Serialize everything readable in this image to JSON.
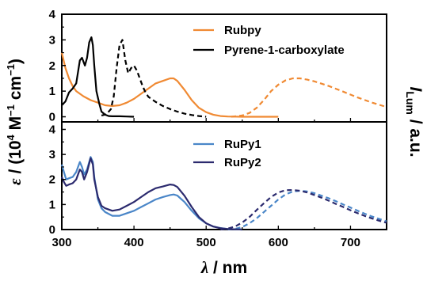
{
  "chart_data": {
    "type": "line",
    "xlabel": "λ / nm",
    "ylabel": "ε / (10⁴ M⁻¹ cm⁻¹)",
    "ylabel_right": "I_Lum / a.u.",
    "axis_text": {
      "eps": "ε",
      "ylabel_rest": " / (10",
      "sup4": "4",
      "m": " M",
      "minus1": "−1",
      "cm": " cm",
      "close": ")",
      "lambda": "λ",
      "xlabel_rest": " / nm",
      "I": "I",
      "lum": "Lum",
      "ilum_rest": " / a.u."
    },
    "xlim": [
      300,
      750
    ],
    "xticks": [
      "300",
      "400",
      "500",
      "600",
      "700"
    ],
    "panels": [
      {
        "ylim": [
          -0.2,
          4
        ],
        "yticks": [
          "0",
          "1",
          "2",
          "3",
          "4"
        ],
        "legend_position": "top-right",
        "series": [
          {
            "name": "Rubpy",
            "color": "#F08A33",
            "style": "solid",
            "x": [
              300,
              305,
              310,
              315,
              320,
              330,
              340,
              350,
              360,
              370,
              380,
              390,
              400,
              410,
              420,
              430,
              440,
              450,
              455,
              460,
              470,
              480,
              490,
              500,
              510,
              520,
              530,
              550,
              575,
              600
            ],
            "y": [
              2.5,
              1.9,
              1.5,
              1.2,
              1.0,
              0.8,
              0.65,
              0.55,
              0.45,
              0.42,
              0.45,
              0.55,
              0.7,
              0.9,
              1.1,
              1.3,
              1.4,
              1.5,
              1.5,
              1.4,
              1.05,
              0.65,
              0.35,
              0.18,
              0.08,
              0.03,
              0.01,
              0.0,
              0.0,
              0.0
            ]
          },
          {
            "name": "Rubpy",
            "color": "#F08A33",
            "style": "dashed",
            "x": [
              535,
              550,
              560,
              570,
              580,
              590,
              600,
              610,
              620,
              630,
              640,
              650,
              670,
              690,
              710,
              730,
              750
            ],
            "y": [
              0.0,
              0.05,
              0.15,
              0.35,
              0.65,
              1.0,
              1.25,
              1.42,
              1.5,
              1.5,
              1.45,
              1.38,
              1.2,
              0.98,
              0.75,
              0.55,
              0.38
            ]
          },
          {
            "name": "Pyrene-1-carboxylate",
            "color": "#000000",
            "style": "solid",
            "x": [
              300,
              305,
              310,
              315,
              320,
              325,
              328,
              332,
              335,
              338,
              341,
              343,
              345,
              348,
              352,
              355,
              360,
              365,
              370,
              380,
              390,
              400
            ],
            "y": [
              0.45,
              0.6,
              0.95,
              1.1,
              1.3,
              2.2,
              2.3,
              2.0,
              2.3,
              2.9,
              3.1,
              2.8,
              2.0,
              1.0,
              0.5,
              0.2,
              0.08,
              0.03,
              0.02,
              0.02,
              0.01,
              0.0
            ]
          },
          {
            "name": "Pyrene-1-carboxylate",
            "color": "#000000",
            "style": "dashed",
            "x": [
              355,
              362,
              368,
              372,
              376,
              380,
              384,
              388,
              392,
              396,
              400,
              404,
              408,
              412,
              416,
              420,
              430,
              440,
              450,
              460,
              470,
              480,
              490,
              500
            ],
            "y": [
              0.05,
              0.1,
              0.3,
              0.8,
              1.9,
              2.8,
              3.0,
              2.2,
              1.7,
              1.9,
              2.0,
              1.8,
              1.5,
              1.2,
              0.95,
              0.78,
              0.58,
              0.42,
              0.3,
              0.2,
              0.12,
              0.07,
              0.03,
              0.0
            ]
          }
        ]
      },
      {
        "ylim": [
          0,
          4.3
        ],
        "yticks": [
          "0",
          "1",
          "2",
          "3",
          "4"
        ],
        "legend_position": "top-right",
        "series": [
          {
            "name": "RuPy1",
            "color": "#4A86C8",
            "style": "solid",
            "x": [
              300,
              303,
              306,
              310,
              315,
              320,
              325,
              328,
              331,
              335,
              340,
              343,
              345,
              350,
              355,
              360,
              370,
              380,
              390,
              400,
              410,
              420,
              430,
              440,
              450,
              455,
              460,
              470,
              480,
              490,
              500,
              510,
              520,
              530,
              540,
              550
            ],
            "y": [
              2.6,
              2.3,
              2.0,
              2.05,
              2.1,
              2.3,
              2.7,
              2.5,
              2.2,
              2.4,
              2.9,
              2.7,
              2.1,
              1.2,
              0.85,
              0.7,
              0.55,
              0.55,
              0.65,
              0.75,
              0.9,
              1.05,
              1.2,
              1.3,
              1.38,
              1.4,
              1.36,
              1.1,
              0.75,
              0.45,
              0.25,
              0.12,
              0.06,
              0.02,
              0.01,
              0.0
            ]
          },
          {
            "name": "RuPy1",
            "color": "#4A86C8",
            "style": "dashed",
            "x": [
              530,
              540,
              550,
              560,
              570,
              580,
              590,
              600,
              610,
              620,
              630,
              640,
              650,
              660,
              670,
              680,
              690,
              700,
              710,
              720,
              730,
              740,
              750
            ],
            "y": [
              0.0,
              0.03,
              0.1,
              0.25,
              0.45,
              0.7,
              0.95,
              1.2,
              1.4,
              1.52,
              1.55,
              1.52,
              1.45,
              1.35,
              1.25,
              1.13,
              1.0,
              0.88,
              0.75,
              0.63,
              0.52,
              0.42,
              0.33
            ]
          },
          {
            "name": "RuPy2",
            "color": "#2B2A6E",
            "style": "solid",
            "x": [
              300,
              303,
              306,
              310,
              315,
              320,
              325,
              328,
              331,
              335,
              340,
              343,
              345,
              350,
              355,
              360,
              370,
              380,
              390,
              400,
              410,
              420,
              430,
              440,
              450,
              455,
              460,
              470,
              480,
              490,
              500,
              510,
              520,
              530,
              540,
              550
            ],
            "y": [
              2.1,
              1.9,
              1.75,
              1.8,
              1.85,
              2.0,
              2.4,
              2.3,
              2.0,
              2.3,
              2.85,
              2.6,
              2.0,
              1.3,
              0.95,
              0.85,
              0.75,
              0.8,
              0.95,
              1.1,
              1.3,
              1.5,
              1.65,
              1.72,
              1.8,
              1.78,
              1.7,
              1.35,
              0.9,
              0.5,
              0.25,
              0.12,
              0.05,
              0.02,
              0.01,
              0.0
            ]
          },
          {
            "name": "RuPy2",
            "color": "#2B2A6E",
            "style": "dashed",
            "x": [
              520,
              530,
              540,
              550,
              560,
              570,
              580,
              590,
              600,
              610,
              620,
              630,
              640,
              650,
              660,
              670,
              680,
              690,
              700,
              710,
              720,
              730,
              740,
              750
            ],
            "y": [
              0.0,
              0.04,
              0.12,
              0.28,
              0.5,
              0.78,
              1.05,
              1.3,
              1.48,
              1.57,
              1.58,
              1.55,
              1.48,
              1.38,
              1.27,
              1.15,
              1.02,
              0.9,
              0.77,
              0.65,
              0.54,
              0.44,
              0.35,
              0.27
            ]
          }
        ]
      }
    ]
  }
}
